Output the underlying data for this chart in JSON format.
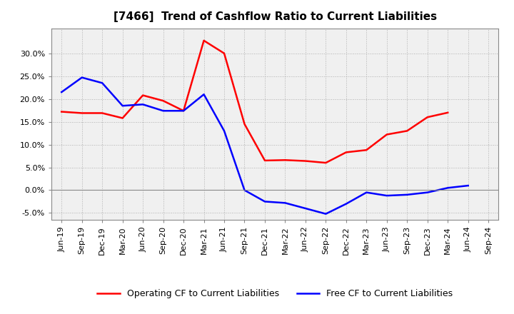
{
  "title": "[7466]  Trend of Cashflow Ratio to Current Liabilities",
  "x_labels": [
    "Jun-19",
    "Sep-19",
    "Dec-19",
    "Mar-20",
    "Jun-20",
    "Sep-20",
    "Dec-20",
    "Mar-21",
    "Jun-21",
    "Sep-21",
    "Dec-21",
    "Mar-22",
    "Jun-22",
    "Sep-22",
    "Dec-22",
    "Mar-23",
    "Jun-23",
    "Sep-23",
    "Dec-23",
    "Mar-24",
    "Jun-24",
    "Sep-24"
  ],
  "operating_cf": [
    0.172,
    0.169,
    0.169,
    0.158,
    0.208,
    0.196,
    0.174,
    0.328,
    0.3,
    0.145,
    0.065,
    0.066,
    0.064,
    0.06,
    0.083,
    0.088,
    0.122,
    0.13,
    0.16,
    0.17,
    null,
    null
  ],
  "free_cf": [
    0.215,
    0.247,
    0.235,
    0.185,
    0.188,
    0.174,
    0.174,
    0.21,
    0.13,
    0.0,
    -0.025,
    -0.028,
    -0.04,
    -0.052,
    -0.03,
    -0.005,
    -0.012,
    -0.01,
    -0.005,
    0.005,
    0.01,
    null
  ],
  "operating_color": "#ff0000",
  "free_color": "#0000ff",
  "ylim": [
    -0.065,
    0.355
  ],
  "yticks": [
    -0.05,
    0.0,
    0.05,
    0.1,
    0.15,
    0.2,
    0.25,
    0.3
  ],
  "background_color": "#ffffff",
  "plot_bg_color": "#f0f0f0",
  "grid_color": "#b0b0b0",
  "legend_op": "Operating CF to Current Liabilities",
  "legend_free": "Free CF to Current Liabilities",
  "title_fontsize": 11,
  "tick_fontsize": 8,
  "legend_fontsize": 9
}
